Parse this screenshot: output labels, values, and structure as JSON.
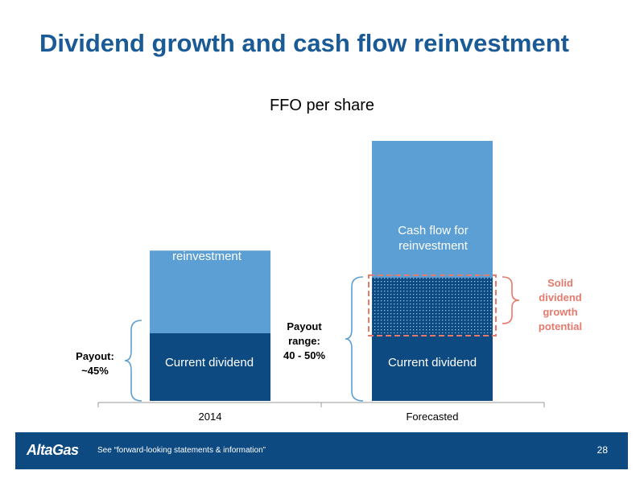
{
  "slide": {
    "title": "Dividend growth and cash flow reinvestment",
    "logo_text": "AltaGas",
    "footnote": "See “forward-looking statements & information”",
    "page_number": "28"
  },
  "annotations": {
    "payout_2014": "Payout:\n~45%",
    "payout_range": "Payout\nrange:\n40 - 50%",
    "growth_potential": "Solid\ndividend\ngrowth\npotential"
  },
  "colors": {
    "title": "#1a5a95",
    "dark_bar": "#0e4a82",
    "light_bar": "#5b9fd4",
    "accent": "#e57a6d",
    "footer": "#0e4a82"
  },
  "chart_data": {
    "type": "bar",
    "stacked": true,
    "title": "FFO per share",
    "categories": [
      "2014",
      "Forecasted"
    ],
    "series": [
      {
        "name": "Current dividend",
        "values": [
          45,
          45
        ]
      },
      {
        "name": "Cash flow for reinvestment",
        "values": [
          55,
          128
        ]
      }
    ],
    "highlight": {
      "category": "Forecasted",
      "from": 45,
      "to": 82,
      "label": "Solid dividend growth potential"
    },
    "ylim": [
      0,
      173
    ],
    "xlabel": "",
    "ylabel": "",
    "grid": false,
    "legend": "none"
  }
}
